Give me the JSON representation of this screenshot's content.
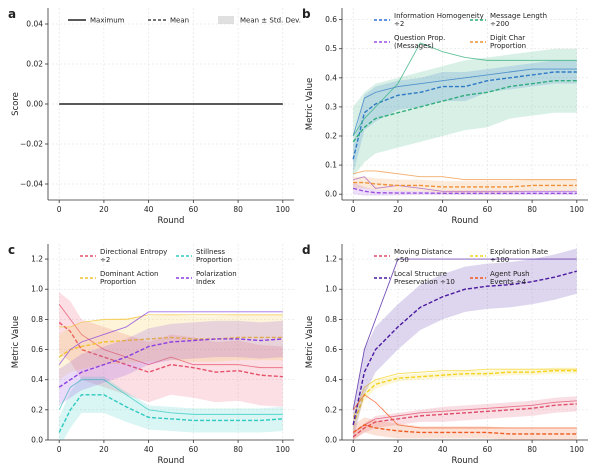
{
  "chart_data": [
    {
      "panel": "a",
      "type": "line",
      "ylabel": "Score",
      "xlabel": "Round",
      "xlim": [
        -5,
        105
      ],
      "ylim": [
        -0.048,
        0.048
      ],
      "xticks": [
        0,
        20,
        40,
        60,
        80,
        100
      ],
      "yticks": [
        -0.04,
        -0.02,
        0.0,
        0.02,
        0.04
      ],
      "ytick_labels": [
        "−0.04",
        "−0.02",
        "0.00",
        "0.02",
        "0.04"
      ],
      "grid": true,
      "legend": {
        "position": "top",
        "items": [
          {
            "label": "Maximum",
            "style": "solid"
          },
          {
            "label": "Mean",
            "style": "dashed"
          },
          {
            "label": "Mean ± Std. Dev.",
            "style": "band"
          }
        ]
      },
      "series": [
        {
          "name": "Maximum",
          "color": "#222222",
          "x": [
            0,
            100
          ],
          "y": [
            0,
            0
          ]
        },
        {
          "name": "Mean",
          "color": "#222222",
          "x": [
            0,
            100
          ],
          "y": [
            0,
            0
          ]
        }
      ]
    },
    {
      "panel": "b",
      "type": "line",
      "ylabel": "Metric Value",
      "xlabel": "Round",
      "xlim": [
        -5,
        105
      ],
      "ylim": [
        -0.02,
        0.64
      ],
      "xticks": [
        0,
        20,
        40,
        60,
        80,
        100
      ],
      "yticks": [
        0.0,
        0.1,
        0.2,
        0.3,
        0.4,
        0.5,
        0.6
      ],
      "ytick_labels": [
        "0.0",
        "0.1",
        "0.2",
        "0.3",
        "0.4",
        "0.5",
        "0.6"
      ],
      "grid": true,
      "legend_position": "top",
      "series": [
        {
          "name": "Information Homogeneity ÷2",
          "color": "#2f6fd6",
          "x": [
            0,
            5,
            10,
            20,
            30,
            40,
            50,
            60,
            70,
            80,
            90,
            100
          ],
          "mean": [
            0.12,
            0.28,
            0.31,
            0.34,
            0.35,
            0.37,
            0.37,
            0.39,
            0.4,
            0.41,
            0.42,
            0.42
          ],
          "sd": [
            0.05,
            0.06,
            0.06,
            0.05,
            0.05,
            0.05,
            0.05,
            0.04,
            0.04,
            0.04,
            0.04,
            0.04
          ],
          "max": [
            0.2,
            0.33,
            0.35,
            0.37,
            0.38,
            0.39,
            0.4,
            0.41,
            0.42,
            0.43,
            0.43,
            0.43
          ]
        },
        {
          "name": "Message Length ÷200",
          "color": "#2fae7b",
          "x": [
            0,
            5,
            10,
            20,
            30,
            40,
            50,
            60,
            70,
            80,
            90,
            100
          ],
          "mean": [
            0.18,
            0.23,
            0.26,
            0.28,
            0.3,
            0.32,
            0.34,
            0.35,
            0.37,
            0.38,
            0.39,
            0.39
          ],
          "sd": [
            0.12,
            0.12,
            0.12,
            0.12,
            0.12,
            0.12,
            0.12,
            0.12,
            0.11,
            0.11,
            0.11,
            0.11
          ],
          "max": [
            0.2,
            0.26,
            0.3,
            0.38,
            0.52,
            0.49,
            0.47,
            0.46,
            0.46,
            0.46,
            0.46,
            0.46
          ]
        },
        {
          "name": "Question Prop. (Messages)",
          "color": "#9a4fe0",
          "x": [
            0,
            5,
            10,
            20,
            30,
            40,
            50,
            60,
            70,
            80,
            90,
            100
          ],
          "mean": [
            0.02,
            0.01,
            0.005,
            0.004,
            0.004,
            0.003,
            0.003,
            0.003,
            0.003,
            0.003,
            0.003,
            0.003
          ],
          "sd": [
            0.02,
            0.015,
            0.01,
            0.008,
            0.006,
            0.006,
            0.006,
            0.006,
            0.006,
            0.006,
            0.006,
            0.006
          ],
          "max": [
            0.05,
            0.06,
            0.02,
            0.03,
            0.02,
            0.01,
            0.01,
            0.01,
            0.01,
            0.01,
            0.01,
            0.01
          ]
        },
        {
          "name": "Digit Char Proportion",
          "color": "#f0913a",
          "x": [
            0,
            5,
            10,
            20,
            30,
            40,
            50,
            60,
            70,
            80,
            90,
            100
          ],
          "mean": [
            0.04,
            0.04,
            0.035,
            0.03,
            0.03,
            0.025,
            0.025,
            0.025,
            0.025,
            0.03,
            0.03,
            0.03
          ],
          "sd": [
            0.02,
            0.02,
            0.02,
            0.02,
            0.02,
            0.02,
            0.02,
            0.02,
            0.02,
            0.02,
            0.02,
            0.02
          ],
          "max": [
            0.07,
            0.08,
            0.08,
            0.07,
            0.06,
            0.06,
            0.05,
            0.05,
            0.05,
            0.05,
            0.05,
            0.05
          ]
        }
      ]
    },
    {
      "panel": "c",
      "type": "line",
      "ylabel": "Metric Value",
      "xlabel": "Round",
      "xlim": [
        -5,
        105
      ],
      "ylim": [
        0.0,
        1.3
      ],
      "xticks": [
        0,
        20,
        40,
        60,
        80,
        100
      ],
      "yticks": [
        0.0,
        0.2,
        0.4,
        0.6,
        0.8,
        1.0,
        1.2
      ],
      "ytick_labels": [
        "0.0",
        "0.2",
        "0.4",
        "0.6",
        "0.8",
        "1.0",
        "1.2"
      ],
      "grid": true,
      "legend_position": "top",
      "series": [
        {
          "name": "Directional Entropy ÷2",
          "color": "#e8506a",
          "x": [
            0,
            5,
            10,
            20,
            30,
            40,
            50,
            60,
            70,
            80,
            90,
            100
          ],
          "mean": [
            0.78,
            0.72,
            0.6,
            0.55,
            0.5,
            0.45,
            0.5,
            0.48,
            0.45,
            0.46,
            0.43,
            0.42
          ],
          "sd": [
            0.2,
            0.2,
            0.2,
            0.2,
            0.2,
            0.2,
            0.2,
            0.2,
            0.2,
            0.2,
            0.2,
            0.2
          ],
          "max": [
            0.9,
            0.8,
            0.7,
            0.6,
            0.55,
            0.5,
            0.55,
            0.5,
            0.5,
            0.5,
            0.48,
            0.48
          ]
        },
        {
          "name": "Stillness Proportion",
          "color": "#2ec9c0",
          "x": [
            0,
            5,
            10,
            20,
            30,
            40,
            50,
            60,
            70,
            80,
            90,
            100
          ],
          "mean": [
            0.05,
            0.2,
            0.3,
            0.3,
            0.22,
            0.15,
            0.14,
            0.13,
            0.13,
            0.13,
            0.13,
            0.14
          ],
          "sd": [
            0.1,
            0.12,
            0.12,
            0.12,
            0.1,
            0.08,
            0.08,
            0.08,
            0.08,
            0.08,
            0.08,
            0.08
          ],
          "max": [
            0.2,
            0.35,
            0.4,
            0.4,
            0.3,
            0.2,
            0.18,
            0.17,
            0.17,
            0.17,
            0.17,
            0.17
          ]
        },
        {
          "name": "Dominant Action Proportion",
          "color": "#f2c230",
          "x": [
            0,
            5,
            10,
            20,
            30,
            40,
            50,
            60,
            70,
            80,
            90,
            100
          ],
          "mean": [
            0.55,
            0.6,
            0.62,
            0.65,
            0.66,
            0.67,
            0.68,
            0.67,
            0.67,
            0.68,
            0.68,
            0.68
          ],
          "sd": [
            0.15,
            0.15,
            0.15,
            0.15,
            0.15,
            0.15,
            0.15,
            0.15,
            0.15,
            0.15,
            0.15,
            0.15
          ],
          "max": [
            0.75,
            0.75,
            0.78,
            0.8,
            0.8,
            0.83,
            0.83,
            0.83,
            0.83,
            0.83,
            0.83,
            0.83
          ]
        },
        {
          "name": "Polarization Index",
          "color": "#8a3fe0",
          "x": [
            0,
            5,
            10,
            20,
            30,
            40,
            50,
            60,
            70,
            80,
            90,
            100
          ],
          "mean": [
            0.35,
            0.4,
            0.45,
            0.5,
            0.55,
            0.62,
            0.65,
            0.66,
            0.67,
            0.67,
            0.66,
            0.67
          ],
          "sd": [
            0.12,
            0.12,
            0.12,
            0.12,
            0.12,
            0.12,
            0.12,
            0.12,
            0.12,
            0.12,
            0.12,
            0.12
          ],
          "max": [
            0.5,
            0.6,
            0.65,
            0.7,
            0.75,
            0.85,
            0.85,
            0.85,
            0.85,
            0.85,
            0.85,
            0.85
          ]
        }
      ]
    },
    {
      "panel": "d",
      "type": "line",
      "ylabel": "Metric Value",
      "xlabel": "Round",
      "xlim": [
        -5,
        105
      ],
      "ylim": [
        0.0,
        1.3
      ],
      "xticks": [
        0,
        20,
        40,
        60,
        80,
        100
      ],
      "yticks": [
        0.0,
        0.2,
        0.4,
        0.6,
        0.8,
        1.0,
        1.2
      ],
      "ytick_labels": [
        "0.0",
        "0.2",
        "0.4",
        "0.6",
        "0.8",
        "1.0",
        "1.2"
      ],
      "grid": true,
      "legend_position": "top",
      "series": [
        {
          "name": "Moving Distance ÷50",
          "color": "#e04c6a",
          "x": [
            0,
            5,
            10,
            20,
            30,
            40,
            50,
            60,
            70,
            80,
            90,
            100
          ],
          "mean": [
            0.02,
            0.08,
            0.12,
            0.14,
            0.16,
            0.17,
            0.18,
            0.19,
            0.2,
            0.21,
            0.23,
            0.24
          ],
          "sd": [
            0.02,
            0.03,
            0.04,
            0.04,
            0.04,
            0.05,
            0.05,
            0.05,
            0.05,
            0.05,
            0.05,
            0.05
          ],
          "max": [
            0.05,
            0.1,
            0.14,
            0.16,
            0.18,
            0.19,
            0.2,
            0.21,
            0.22,
            0.23,
            0.25,
            0.26
          ]
        },
        {
          "name": "Exploration Rate ÷100",
          "color": "#f5d21e",
          "x": [
            0,
            5,
            10,
            20,
            30,
            40,
            50,
            60,
            70,
            80,
            90,
            100
          ],
          "mean": [
            0.1,
            0.3,
            0.37,
            0.41,
            0.42,
            0.43,
            0.44,
            0.44,
            0.45,
            0.45,
            0.46,
            0.46
          ],
          "sd": [
            0.04,
            0.04,
            0.03,
            0.02,
            0.02,
            0.02,
            0.02,
            0.02,
            0.02,
            0.02,
            0.02,
            0.02
          ],
          "max": [
            0.15,
            0.35,
            0.4,
            0.44,
            0.45,
            0.46,
            0.46,
            0.47,
            0.47,
            0.47,
            0.47,
            0.47
          ]
        },
        {
          "name": "Local Structure Preservation ÷10",
          "color": "#4a1aa0",
          "x": [
            0,
            5,
            10,
            20,
            30,
            40,
            50,
            60,
            70,
            80,
            90,
            100
          ],
          "mean": [
            0.1,
            0.45,
            0.6,
            0.75,
            0.88,
            0.95,
            1.0,
            1.02,
            1.03,
            1.05,
            1.08,
            1.12
          ],
          "sd": [
            0.1,
            0.15,
            0.15,
            0.15,
            0.15,
            0.15,
            0.15,
            0.15,
            0.15,
            0.15,
            0.15,
            0.15
          ],
          "max": [
            0.2,
            0.6,
            0.8,
            1.2,
            1.2,
            1.2,
            1.2,
            1.2,
            1.2,
            1.2,
            1.2,
            1.2
          ]
        },
        {
          "name": "Agent Push Events ÷4",
          "color": "#f05a1e",
          "x": [
            0,
            5,
            10,
            20,
            30,
            40,
            50,
            60,
            70,
            80,
            90,
            100
          ],
          "mean": [
            0.05,
            0.1,
            0.08,
            0.06,
            0.05,
            0.05,
            0.05,
            0.05,
            0.04,
            0.04,
            0.04,
            0.04
          ],
          "sd": [
            0.05,
            0.05,
            0.05,
            0.05,
            0.04,
            0.04,
            0.04,
            0.04,
            0.04,
            0.04,
            0.04,
            0.04
          ],
          "max": [
            0.2,
            0.3,
            0.25,
            0.1,
            0.08,
            0.08,
            0.08,
            0.08,
            0.08,
            0.08,
            0.08,
            0.08
          ]
        }
      ]
    }
  ]
}
